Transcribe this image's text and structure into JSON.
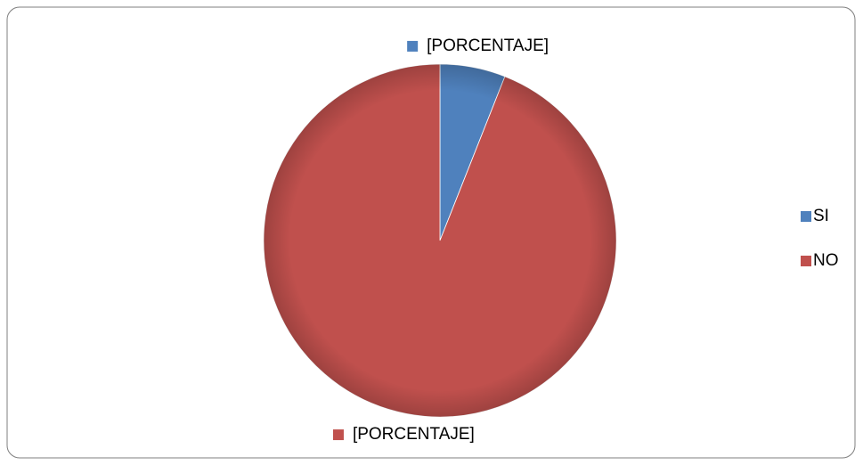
{
  "chart_data": {
    "type": "pie",
    "categories": [
      "SI",
      "NO"
    ],
    "values": [
      6,
      94
    ],
    "value_labels": [
      "[PORCENTAJE]",
      "[PORCENTAJE]"
    ],
    "colors": [
      "#4f81bd",
      "#c0504d"
    ],
    "legend": "right"
  }
}
